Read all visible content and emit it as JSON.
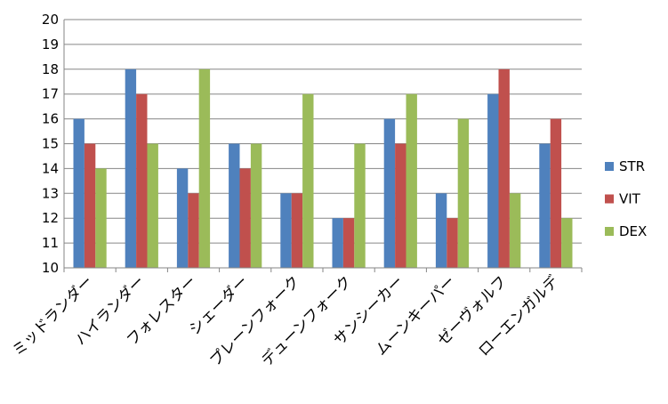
{
  "chart_data": {
    "type": "bar",
    "title": "",
    "xlabel": "",
    "ylabel": "",
    "ylim": [
      10,
      20
    ],
    "yticks": [
      10,
      11,
      12,
      13,
      14,
      15,
      16,
      17,
      18,
      19,
      20
    ],
    "grid": true,
    "legend_position": "right",
    "categories": [
      "ミッドランダー",
      "ハイランダー",
      "フォレスター",
      "シェーダー",
      "プレーンフォーク",
      "デューンフォーク",
      "サンシーカー",
      "ムーンキーパー",
      "ゼーヴォルフ",
      "ローエンガルデ"
    ],
    "series": [
      {
        "name": "STR",
        "color": "#4F81BD",
        "values": [
          16,
          18,
          14,
          15,
          13,
          12,
          16,
          13,
          17,
          15
        ]
      },
      {
        "name": "VIT",
        "color": "#C0504D",
        "values": [
          15,
          17,
          13,
          14,
          13,
          12,
          15,
          12,
          18,
          16
        ]
      },
      {
        "name": "DEX",
        "color": "#9BBB59",
        "values": [
          14,
          15,
          18,
          15,
          17,
          15,
          17,
          16,
          13,
          12
        ]
      }
    ]
  }
}
